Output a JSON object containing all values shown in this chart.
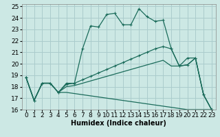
{
  "xlabel": "Humidex (Indice chaleur)",
  "bg_color": "#cce8e4",
  "grid_color": "#aacccc",
  "line_color": "#1a6b5a",
  "xlim": [
    -0.5,
    23.5
  ],
  "ylim": [
    16,
    25.2
  ],
  "yticks": [
    16,
    17,
    18,
    19,
    20,
    21,
    22,
    23,
    24,
    25
  ],
  "xticks": [
    0,
    1,
    2,
    3,
    4,
    5,
    6,
    7,
    8,
    9,
    10,
    11,
    12,
    13,
    14,
    15,
    16,
    17,
    18,
    19,
    20,
    21,
    22,
    23
  ],
  "series": [
    [
      18.8,
      16.8,
      18.3,
      18.3,
      17.5,
      18.3,
      18.3,
      21.3,
      23.3,
      23.2,
      24.3,
      24.4,
      23.4,
      23.4,
      24.8,
      24.1,
      23.7,
      23.8,
      21.3,
      19.8,
      20.5,
      20.5,
      17.3,
      16.0
    ],
    [
      18.8,
      16.8,
      18.3,
      18.3,
      17.5,
      18.2,
      18.3,
      18.6,
      18.9,
      19.2,
      19.5,
      19.8,
      20.1,
      20.4,
      20.7,
      21.0,
      21.3,
      21.5,
      21.3,
      19.8,
      19.9,
      20.5,
      17.3,
      16.0
    ],
    [
      18.8,
      16.8,
      18.3,
      18.3,
      17.5,
      18.0,
      18.1,
      18.3,
      18.5,
      18.7,
      18.9,
      19.1,
      19.3,
      19.5,
      19.7,
      19.9,
      20.1,
      20.3,
      19.8,
      19.8,
      19.9,
      20.5,
      17.3,
      16.0
    ],
    [
      18.8,
      16.8,
      18.3,
      18.3,
      17.5,
      17.5,
      17.4,
      17.3,
      17.2,
      17.1,
      17.0,
      16.9,
      16.8,
      16.7,
      16.6,
      16.5,
      16.4,
      16.3,
      16.2,
      16.1,
      16.0,
      16.0,
      16.0,
      16.0
    ]
  ],
  "has_markers": [
    true,
    true,
    false,
    false
  ],
  "label_fontsize": 7,
  "tick_fontsize": 6.5
}
